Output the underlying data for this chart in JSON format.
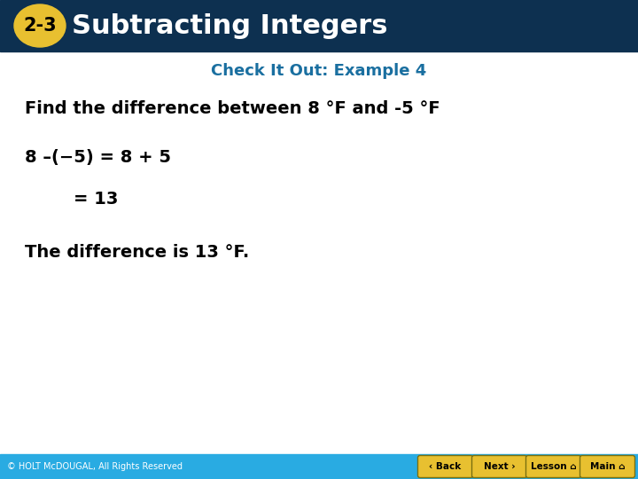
{
  "title_badge": "2-3",
  "title_text": "Subtracting Integers",
  "header_bg_color": "#0d3050",
  "badge_bg_color": "#e8c030",
  "badge_text_color": "#000000",
  "header_text_color": "#ffffff",
  "subtitle_text": "Check It Out: Example 4",
  "subtitle_color": "#1a6fa0",
  "line1": "Find the difference between 8 °F and -5 °F",
  "line2": "8 –(−5) = 8 + 5",
  "line3": "= 13",
  "line4": "The difference is 13 °F.",
  "body_text_color": "#000000",
  "footer_bg_color": "#29abe2",
  "footer_text": "© HOLT McDOUGAL, All Rights Reserved",
  "footer_text_color": "#ffffff",
  "button_labels": [
    "Back",
    "Next",
    "Lesson",
    "Main"
  ],
  "button_bg_color": "#e8c030",
  "fig_width": 7.2,
  "fig_height": 5.4,
  "dpi": 100
}
